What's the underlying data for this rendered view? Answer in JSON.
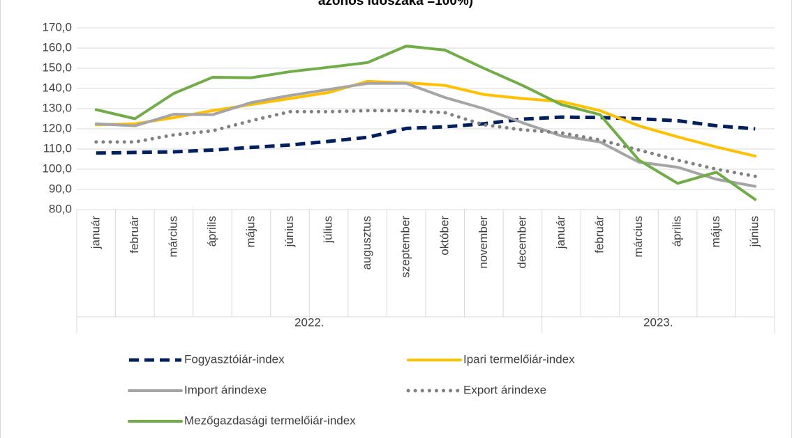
{
  "chart_data": {
    "type": "line",
    "title": "azonos időszaka =100%)",
    "groups": [
      {
        "label": "2022.",
        "categories": [
          "január",
          "február",
          "március",
          "április",
          "május",
          "június",
          "július",
          "augusztus",
          "szeptember",
          "október",
          "november",
          "december"
        ]
      },
      {
        "label": "2023.",
        "categories": [
          "január",
          "február",
          "március",
          "április",
          "május",
          "június"
        ]
      }
    ],
    "ylim": [
      80,
      170
    ],
    "yticks": [
      {
        "value": 80,
        "label": "80,0"
      },
      {
        "value": 90,
        "label": "90,0"
      },
      {
        "value": 100,
        "label": "100,0"
      },
      {
        "value": 110,
        "label": "110,0"
      },
      {
        "value": 120,
        "label": "120,0"
      },
      {
        "value": 130,
        "label": "130,0"
      },
      {
        "value": 140,
        "label": "140,0"
      },
      {
        "value": 150,
        "label": "150,0"
      },
      {
        "value": 160,
        "label": "160,0"
      },
      {
        "value": 170,
        "label": "170,0"
      }
    ],
    "grid": true,
    "legend": "bottom",
    "series": [
      {
        "name": "Fogyasztóiár-index",
        "color": "#002060",
        "style": "dashed",
        "values": [
          108,
          108.3,
          108.6,
          109.5,
          110.8,
          112,
          113.8,
          115.8,
          120.2,
          121,
          122.5,
          124.8,
          125.8,
          125.6,
          125,
          124,
          121.5,
          120
        ]
      },
      {
        "name": "Ipari termelőiár-index",
        "color": "#ffc000",
        "style": "solid",
        "values": [
          122,
          122.5,
          125.5,
          129,
          132,
          135,
          138,
          143.5,
          142.8,
          141.5,
          137,
          135,
          133.5,
          129,
          121.5,
          116,
          111,
          106.5
        ]
      },
      {
        "name": "Import árindexe",
        "color": "#a5a5a5",
        "style": "solid",
        "values": [
          122.5,
          121.5,
          127.2,
          127,
          133,
          136.5,
          139.5,
          142.5,
          142.5,
          135.5,
          130,
          123,
          116.5,
          113.5,
          103.5,
          101,
          95,
          91.5
        ]
      },
      {
        "name": "Export árindexe",
        "color": "#808080",
        "style": "dotted",
        "values": [
          113.5,
          113.5,
          117,
          119,
          124,
          128.5,
          128.5,
          129,
          129,
          128,
          122,
          119.5,
          118,
          114.5,
          109.5,
          104.5,
          100,
          96.5
        ]
      },
      {
        "name": "Mezőgazdasági termelőiár-index",
        "color": "#70ad47",
        "style": "solid",
        "values": [
          129.5,
          125,
          137.5,
          145.5,
          145.3,
          148.3,
          150.5,
          152.8,
          161,
          159,
          150,
          141.5,
          132,
          127,
          104.5,
          93,
          98.5,
          85
        ]
      }
    ]
  }
}
